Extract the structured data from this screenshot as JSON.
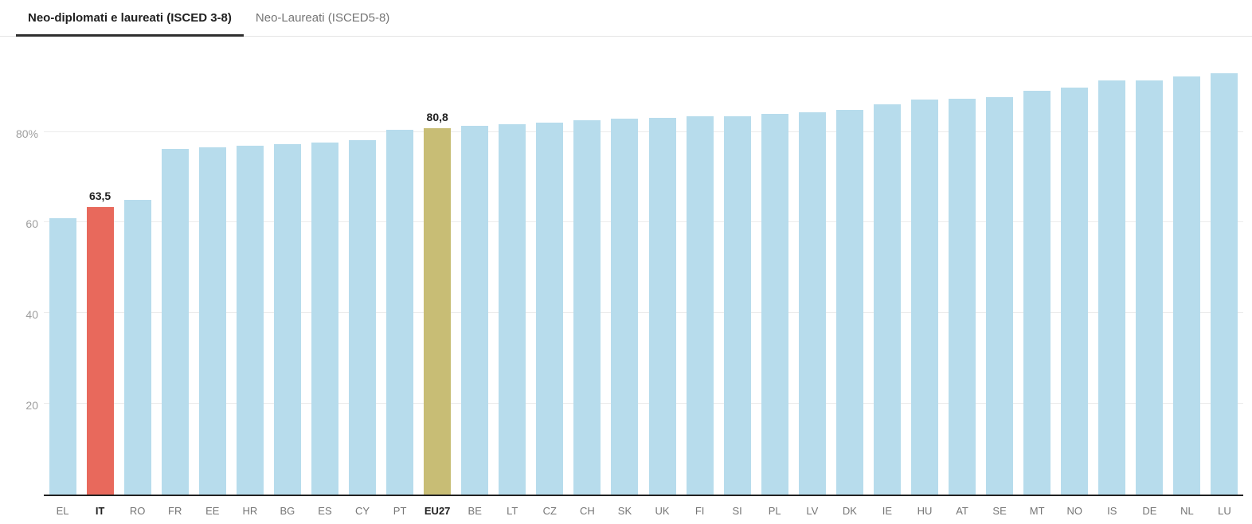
{
  "tabs": {
    "items": [
      {
        "id": "neo-diplomati-e-laureati",
        "label": "Neo-diplomati e laureati (ISCED 3-8)",
        "active": true
      },
      {
        "id": "neo-laureati",
        "label": "Neo-Laureati (ISCED5-8)",
        "active": false
      }
    ]
  },
  "chart_data": {
    "type": "bar",
    "unit": "%",
    "ylim": [
      0,
      101
    ],
    "grid": true,
    "yticks": [
      {
        "value": 80,
        "label": "80%"
      },
      {
        "value": 60,
        "label": "60"
      },
      {
        "value": 40,
        "label": "40"
      },
      {
        "value": 20,
        "label": "20"
      }
    ],
    "points": [
      {
        "code": "EL",
        "value": 61.0,
        "color": "default",
        "bold": false
      },
      {
        "code": "IT",
        "value": 63.5,
        "color": "red",
        "bold": true,
        "data_label": "63,5"
      },
      {
        "code": "RO",
        "value": 65.0,
        "color": "default",
        "bold": false
      },
      {
        "code": "FR",
        "value": 76.2,
        "color": "default",
        "bold": false
      },
      {
        "code": "EE",
        "value": 76.5,
        "color": "default",
        "bold": false
      },
      {
        "code": "HR",
        "value": 76.9,
        "color": "default",
        "bold": false
      },
      {
        "code": "BG",
        "value": 77.3,
        "color": "default",
        "bold": false
      },
      {
        "code": "ES",
        "value": 77.7,
        "color": "default",
        "bold": false
      },
      {
        "code": "CY",
        "value": 78.1,
        "color": "default",
        "bold": false
      },
      {
        "code": "PT",
        "value": 80.5,
        "color": "default",
        "bold": false
      },
      {
        "code": "EU27",
        "value": 80.8,
        "color": "khaki",
        "bold": true,
        "data_label": "80,8"
      },
      {
        "code": "BE",
        "value": 81.3,
        "color": "default",
        "bold": false
      },
      {
        "code": "LT",
        "value": 81.6,
        "color": "default",
        "bold": false
      },
      {
        "code": "CZ",
        "value": 82.1,
        "color": "default",
        "bold": false
      },
      {
        "code": "CH",
        "value": 82.6,
        "color": "default",
        "bold": false
      },
      {
        "code": "SK",
        "value": 82.9,
        "color": "default",
        "bold": false
      },
      {
        "code": "UK",
        "value": 83.1,
        "color": "default",
        "bold": false
      },
      {
        "code": "FI",
        "value": 83.4,
        "color": "default",
        "bold": false
      },
      {
        "code": "SI",
        "value": 83.5,
        "color": "default",
        "bold": false
      },
      {
        "code": "PL",
        "value": 84.0,
        "color": "default",
        "bold": false
      },
      {
        "code": "LV",
        "value": 84.4,
        "color": "default",
        "bold": false
      },
      {
        "code": "DK",
        "value": 84.9,
        "color": "default",
        "bold": false
      },
      {
        "code": "IE",
        "value": 86.1,
        "color": "default",
        "bold": false
      },
      {
        "code": "HU",
        "value": 87.1,
        "color": "default",
        "bold": false
      },
      {
        "code": "AT",
        "value": 87.3,
        "color": "default",
        "bold": false
      },
      {
        "code": "SE",
        "value": 87.6,
        "color": "default",
        "bold": false
      },
      {
        "code": "MT",
        "value": 89.0,
        "color": "default",
        "bold": false
      },
      {
        "code": "NO",
        "value": 89.7,
        "color": "default",
        "bold": false
      },
      {
        "code": "IS",
        "value": 91.3,
        "color": "default",
        "bold": false
      },
      {
        "code": "DE",
        "value": 91.3,
        "color": "default",
        "bold": false
      },
      {
        "code": "NL",
        "value": 92.3,
        "color": "default",
        "bold": false
      },
      {
        "code": "LU",
        "value": 92.9,
        "color": "default",
        "bold": false
      }
    ],
    "colors": {
      "default": "#b7dcec",
      "red": "#e8695c",
      "khaki": "#c8bd75",
      "grid": "#ececec",
      "axis": "#212121",
      "ytick_label": "#9e9e9e",
      "xtick_label": "#757575",
      "xtick_label_bold": "#212121",
      "value_label": "#212121",
      "tab_active_text": "#212121",
      "tab_inactive_text": "#757575",
      "tab_underline": "#2f2f2f"
    }
  }
}
